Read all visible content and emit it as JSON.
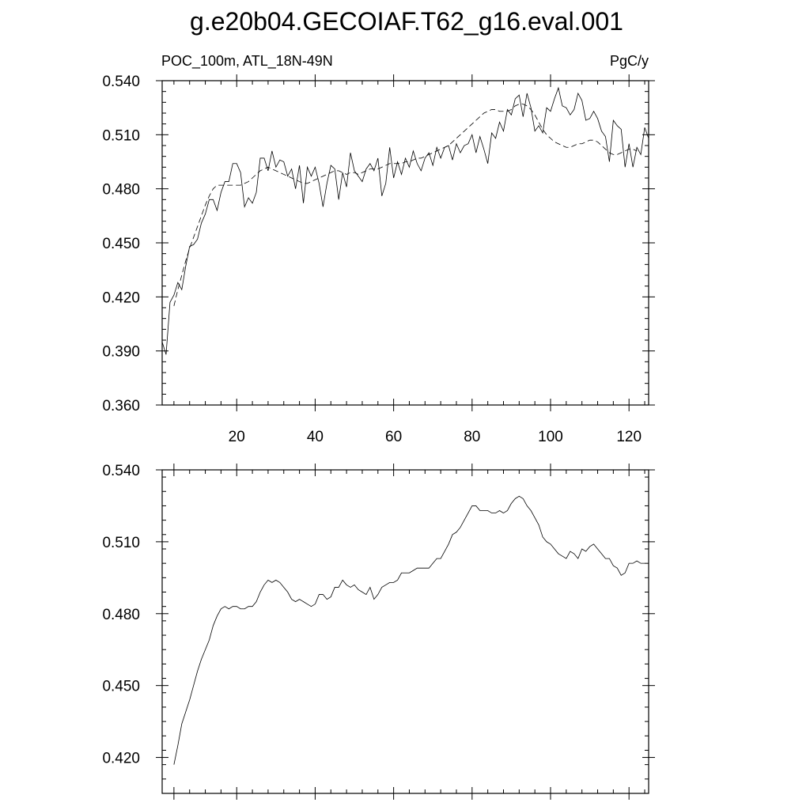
{
  "chart_data": [
    {
      "type": "line",
      "title": "g.e20b04.GECOIAF.T62_g16.eval.001",
      "left_string": "POC_100m, ATL_18N-49N",
      "right_string": "PgC/y",
      "xlim": [
        1,
        125
      ],
      "ylim": [
        0.36,
        0.54
      ],
      "x_ticks": [
        20,
        40,
        60,
        80,
        100,
        120
      ],
      "x_tick_labels": [
        "20",
        "40",
        "60",
        "80",
        "100",
        "120"
      ],
      "y_ticks": [
        0.36,
        0.39,
        0.42,
        0.45,
        0.48,
        0.51,
        0.54
      ],
      "y_tick_labels": [
        "0.360",
        "0.390",
        "0.420",
        "0.450",
        "0.480",
        "0.510",
        "0.540"
      ],
      "grid": false,
      "series": [
        {
          "style": "solid",
          "x_start": 1,
          "values": [
            0.395,
            0.388,
            0.417,
            0.421,
            0.428,
            0.424,
            0.437,
            0.448,
            0.449,
            0.452,
            0.461,
            0.466,
            0.474,
            0.474,
            0.468,
            0.478,
            0.484,
            0.484,
            0.494,
            0.494,
            0.489,
            0.47,
            0.475,
            0.472,
            0.478,
            0.497,
            0.497,
            0.49,
            0.501,
            0.492,
            0.496,
            0.495,
            0.487,
            0.491,
            0.48,
            0.493,
            0.472,
            0.492,
            0.487,
            0.492,
            0.483,
            0.47,
            0.483,
            0.493,
            0.491,
            0.474,
            0.489,
            0.481,
            0.5,
            0.49,
            0.487,
            0.484,
            0.491,
            0.494,
            0.49,
            0.497,
            0.476,
            0.483,
            0.503,
            0.486,
            0.495,
            0.488,
            0.497,
            0.492,
            0.501,
            0.494,
            0.49,
            0.497,
            0.5,
            0.493,
            0.503,
            0.497,
            0.503,
            0.504,
            0.496,
            0.505,
            0.5,
            0.504,
            0.505,
            0.51,
            0.5,
            0.509,
            0.502,
            0.494,
            0.511,
            0.508,
            0.517,
            0.512,
            0.524,
            0.521,
            0.53,
            0.532,
            0.52,
            0.533,
            0.525,
            0.512,
            0.515,
            0.511,
            0.525,
            0.523,
            0.53,
            0.536,
            0.526,
            0.525,
            0.521,
            0.524,
            0.533,
            0.529,
            0.518,
            0.519,
            0.523,
            0.519,
            0.512,
            0.509,
            0.495,
            0.518,
            0.515,
            0.513,
            0.492,
            0.505,
            0.492,
            0.503,
            0.499,
            0.514,
            0.508
          ],
          "note_values_correspond_to_x": "1..125"
        },
        {
          "style": "dashed",
          "x_start": 4,
          "values": [
            0.415,
            0.424,
            0.432,
            0.44,
            0.447,
            0.453,
            0.459,
            0.465,
            0.471,
            0.476,
            0.48,
            0.482,
            0.482,
            0.482,
            0.482,
            0.482,
            0.482,
            0.482,
            0.483,
            0.484,
            0.486,
            0.488,
            0.49,
            0.491,
            0.492,
            0.491,
            0.49,
            0.489,
            0.488,
            0.487,
            0.486,
            0.485,
            0.484,
            0.483,
            0.483,
            0.484,
            0.485,
            0.486,
            0.487,
            0.488,
            0.489,
            0.49,
            0.49,
            0.489,
            0.488,
            0.489,
            0.489,
            0.488,
            0.489,
            0.49,
            0.491,
            0.491,
            0.491,
            0.492,
            0.493,
            0.494,
            0.494,
            0.494,
            0.494,
            0.495,
            0.495,
            0.496,
            0.497,
            0.497,
            0.498,
            0.499,
            0.5,
            0.501,
            0.502,
            0.503,
            0.504,
            0.506,
            0.508,
            0.51,
            0.512,
            0.514,
            0.516,
            0.518,
            0.52,
            0.522,
            0.523,
            0.524,
            0.524,
            0.523,
            0.523,
            0.523,
            0.524,
            0.526,
            0.527,
            0.527,
            0.526,
            0.524,
            0.521,
            0.517,
            0.513,
            0.51,
            0.508,
            0.506,
            0.505,
            0.504,
            0.503,
            0.503,
            0.504,
            0.505,
            0.505,
            0.506,
            0.507,
            0.507,
            0.506,
            0.504,
            0.502,
            0.5,
            0.499,
            0.499,
            0.5,
            0.501,
            0.502,
            0.502,
            0.501
          ]
        }
      ]
    },
    {
      "type": "line",
      "xlim": [
        1,
        125
      ],
      "ylim": [
        0.405,
        0.54
      ],
      "x_ticks": [
        4,
        20,
        40,
        60,
        80,
        100,
        120
      ],
      "x_tick_labels": [],
      "y_ticks": [
        0.42,
        0.45,
        0.48,
        0.51,
        0.54
      ],
      "y_tick_labels": [
        "0.420",
        "0.450",
        "0.480",
        "0.510",
        "0.540"
      ],
      "grid": false,
      "series": [
        {
          "style": "solid",
          "x_start": 4,
          "values": [
            0.417,
            0.425,
            0.434,
            0.439,
            0.444,
            0.45,
            0.456,
            0.461,
            0.465,
            0.469,
            0.475,
            0.479,
            0.482,
            0.483,
            0.482,
            0.483,
            0.483,
            0.482,
            0.482,
            0.483,
            0.483,
            0.485,
            0.489,
            0.492,
            0.494,
            0.493,
            0.494,
            0.493,
            0.491,
            0.489,
            0.486,
            0.485,
            0.486,
            0.485,
            0.484,
            0.483,
            0.484,
            0.488,
            0.488,
            0.486,
            0.487,
            0.491,
            0.491,
            0.494,
            0.492,
            0.491,
            0.492,
            0.49,
            0.489,
            0.488,
            0.491,
            0.486,
            0.488,
            0.491,
            0.492,
            0.493,
            0.493,
            0.494,
            0.497,
            0.497,
            0.497,
            0.498,
            0.499,
            0.499,
            0.499,
            0.499,
            0.501,
            0.503,
            0.503,
            0.506,
            0.509,
            0.513,
            0.514,
            0.516,
            0.519,
            0.522,
            0.525,
            0.525,
            0.523,
            0.523,
            0.523,
            0.522,
            0.522,
            0.523,
            0.522,
            0.523,
            0.526,
            0.528,
            0.529,
            0.528,
            0.525,
            0.523,
            0.52,
            0.517,
            0.512,
            0.51,
            0.509,
            0.507,
            0.505,
            0.504,
            0.503,
            0.506,
            0.505,
            0.503,
            0.507,
            0.506,
            0.508,
            0.509,
            0.507,
            0.505,
            0.503,
            0.503,
            0.5,
            0.499,
            0.496,
            0.497,
            0.501,
            0.501,
            0.502,
            0.501,
            0.501
          ]
        }
      ]
    }
  ]
}
